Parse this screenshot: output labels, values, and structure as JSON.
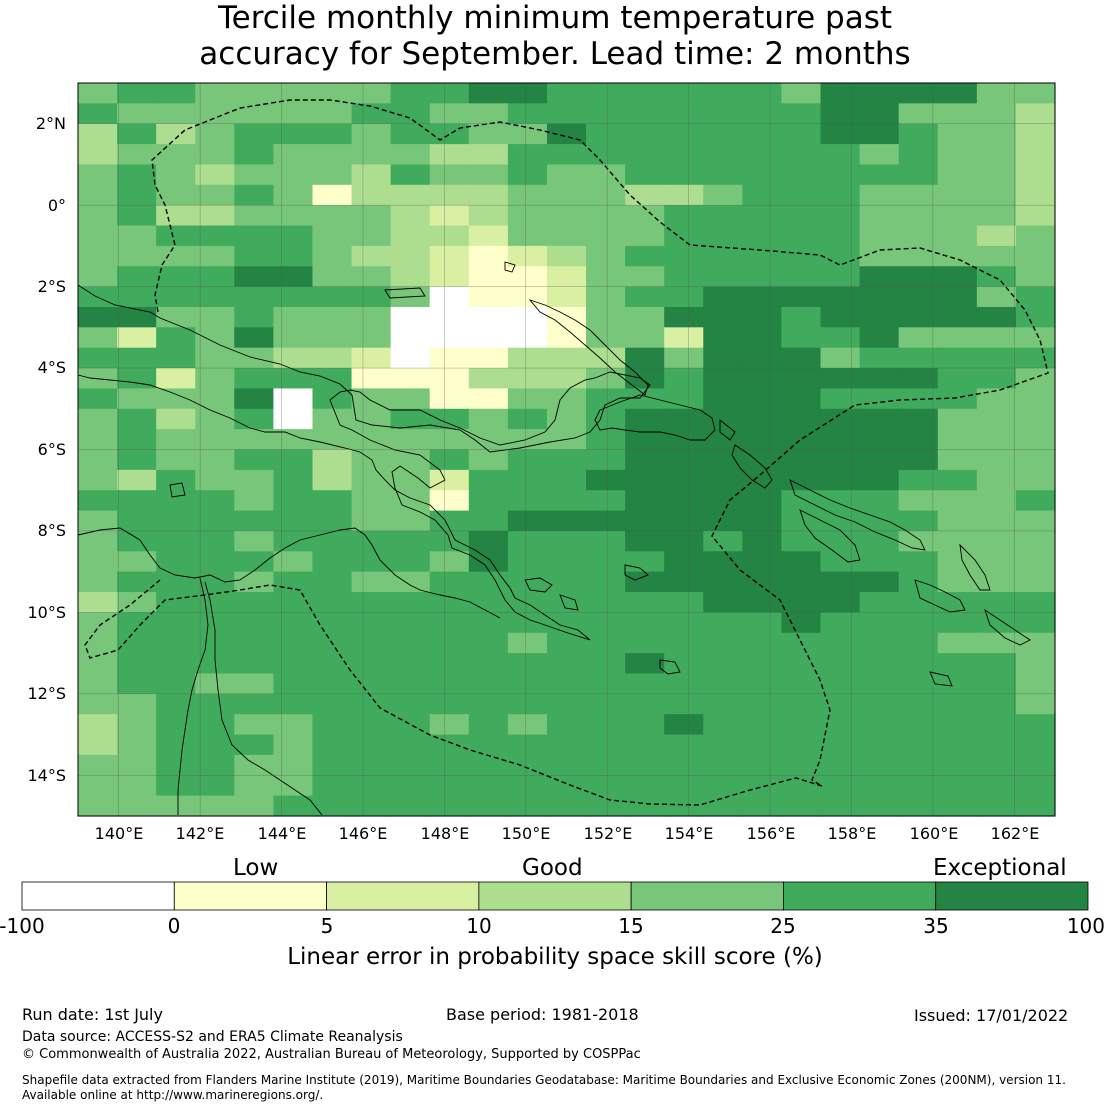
{
  "title_line1": "Tercile monthly minimum temperature past",
  "title_line2": "accuracy for September. Lead time: 2 months",
  "lat_labels": [
    "2°N",
    "0°",
    "2°S",
    "4°S",
    "6°S",
    "8°S",
    "10°S",
    "12°S",
    "14°S"
  ],
  "lon_labels": [
    "140°E",
    "142°E",
    "144°E",
    "146°E",
    "148°E",
    "150°E",
    "152°E",
    "154°E",
    "156°E",
    "158°E",
    "160°E",
    "162°E"
  ],
  "colorbar": {
    "category_labels": [
      "Low",
      "Good",
      "Exceptional"
    ],
    "ticks": [
      "-100",
      "0",
      "5",
      "10",
      "15",
      "25",
      "35",
      "100"
    ],
    "colors": [
      "#ffffff",
      "#ffffcc",
      "#d9f0a3",
      "#addd8e",
      "#78c679",
      "#41ab5d",
      "#238443"
    ],
    "title": "Linear error in probability space skill score (%)"
  },
  "footer": {
    "run_date": "Run date: 1st July",
    "base_period": "Base period: 1981-2018",
    "issued": "Issued: 17/01/2022",
    "data_source": "Data source: ACCESS-S2 and ERA5 Climate Reanalysis",
    "copyright": "© Commonwealth of Australia 2022, Australian Bureau of Meteorology, Supported by COSPPac",
    "shapefile_line1": "Shapefile data extracted from Flanders Marine Institute (2019), Maritime Boundaries Geodatabase: Maritime Boundaries and Exclusive Economic Zones (200NM), version 11.",
    "shapefile_line2": "Available online at http://www.marineregions.org/."
  },
  "map": {
    "lon_range": [
      139,
      163
    ],
    "lat_range": [
      -15,
      3
    ],
    "grid_rows": [
      "4554444455665555554666644",
      "5444444554455555555664443",
      "3534555455446555555665443",
      "3444544443355555555545443",
      "4543444354454455555555443",
      "4544541333344433455544443",
      "4533444432344445555544443",
      "4455554433244445555544434",
      "4444554332123455555544444",
      "4555664432112445555566654",
      "5555555540112455666666645",
      "6644544400001446665666665",
      "4254644400001442665564444",
      "5554433201133364666455555",
      "4524555111333465666666554",
      "5444605441144555666555544",
      "4534504455454566666666444",
      "4544444444444566666666444",
      "4544553445455566666666444",
      "4354453442555666666665544",
      "5555455441555566665554445",
      "4555555445566666665555444",
      "4555455555655566565554444",
      "4455545554655556666555444",
      "4555455445555566666665444",
      "3455555555555555666655555",
      "4555555555555555556555555",
      "4555555555545555555555444",
      "4555555555555565555555554",
      "4554455555555555555555554",
      "4455555555555555555555554",
      "3455445554545556555555555",
      "3455545555555555555555555",
      "4455445555555555555555555",
      "4455445555555555555555555",
      "4444455555555555555555555"
    ]
  }
}
